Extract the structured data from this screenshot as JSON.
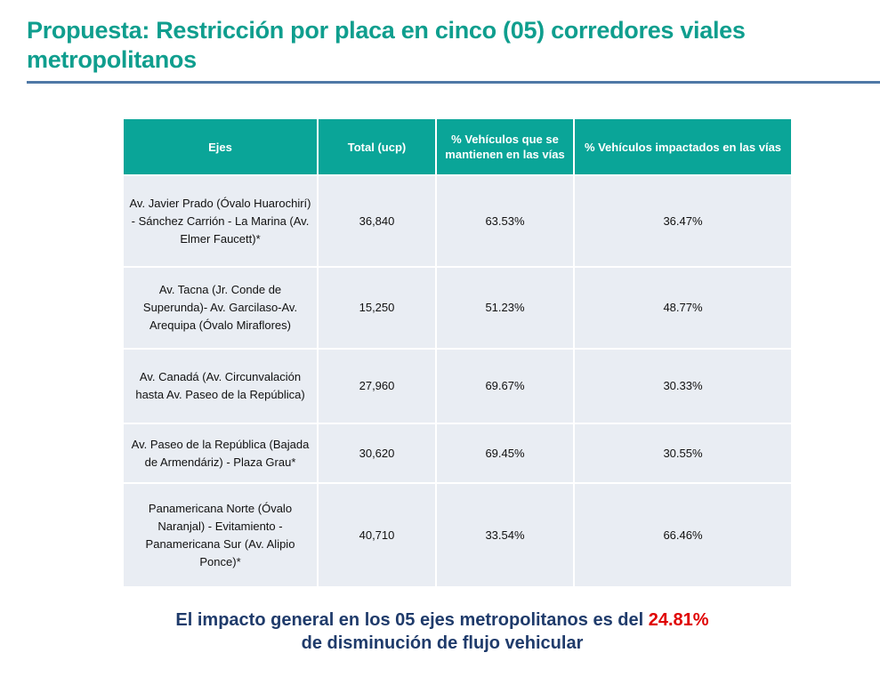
{
  "header": {
    "title": "Propuesta: Restricción por placa en cinco (05) corredores viales metropolitanos"
  },
  "colors": {
    "title": "#0f9e8e",
    "table_header": "#0aa598",
    "row_bg": "#e9edf3",
    "footer_text": "#1f3b6b",
    "highlight": "#e00000",
    "rule": "#4f78a6"
  },
  "table": {
    "columns": [
      "Ejes",
      "Total (ucp)",
      "% Vehículos que se mantienen en las vías",
      "% Vehículos impactados en las vías"
    ],
    "rows": [
      {
        "eje": "Av. Javier Prado (Óvalo Huarochirí) - Sánchez Carrión - La Marina (Av. Elmer Faucett)*",
        "total": "36,840",
        "mantienen": "63.53%",
        "impactados": "36.47%"
      },
      {
        "eje": "Av. Tacna (Jr. Conde de Superunda)- Av. Garcilaso-Av. Arequipa (Óvalo Miraflores)",
        "total": "15,250",
        "mantienen": "51.23%",
        "impactados": "48.77%"
      },
      {
        "eje": "Av. Canadá (Av. Circunvalación hasta Av. Paseo de la República)",
        "total": "27,960",
        "mantienen": "69.67%",
        "impactados": "30.33%"
      },
      {
        "eje": "Av. Paseo de la República (Bajada de Armendáriz) - Plaza Grau*",
        "total": "30,620",
        "mantienen": "69.45%",
        "impactados": "30.55%"
      },
      {
        "eje": "Panamericana Norte (Óvalo Naranjal) - Evitamiento - Panamericana Sur (Av. Alipio Ponce)*",
        "total": "40,710",
        "mantienen": "33.54%",
        "impactados": "66.46%"
      }
    ]
  },
  "footer": {
    "line1_prefix": "El impacto general en los 05 ejes metropolitanos es del ",
    "highlight": "24.81%",
    "line2": "de disminución de flujo vehicular"
  }
}
